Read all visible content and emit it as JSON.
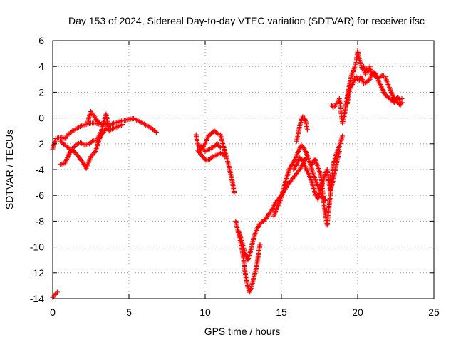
{
  "chart_data": {
    "type": "scatter",
    "title": "Day 153 of 2024, Sidereal Day-to-day VTEC variation (SDTVAR) for receiver ifsc",
    "xlabel": "GPS time / hours",
    "ylabel": "SDTVAR / TECUs",
    "xlim": [
      0,
      25
    ],
    "ylim": [
      -14,
      6
    ],
    "xticks": [
      0,
      5,
      10,
      15,
      20,
      25
    ],
    "yticks": [
      -14,
      -12,
      -10,
      -8,
      -6,
      -4,
      -2,
      0,
      2,
      4,
      6
    ],
    "grid": true,
    "marker": "+",
    "colors": {
      "series": "#ff0000",
      "grid": "#a0a0a0",
      "axis": "#000000"
    },
    "series": [
      {
        "name": "segment-1",
        "points": [
          [
            0.0,
            -2.4
          ],
          [
            0.2,
            -1.6
          ],
          [
            0.5,
            -1.5
          ],
          [
            0.8,
            -1.6
          ],
          [
            1.0,
            -1.3
          ],
          [
            1.3,
            -1.0
          ],
          [
            1.6,
            -0.8
          ],
          [
            1.9,
            -0.6
          ],
          [
            2.2,
            -0.5
          ],
          [
            2.5,
            -0.4
          ],
          [
            2.8,
            -0.4
          ],
          [
            3.1,
            -0.5
          ],
          [
            3.4,
            -0.4
          ],
          [
            3.7,
            -0.6
          ],
          [
            4.0,
            -0.4
          ],
          [
            4.3,
            -0.3
          ],
          [
            4.6,
            -0.2
          ],
          [
            5.0,
            -0.1
          ],
          [
            5.3,
            -0.05
          ],
          [
            5.6,
            -0.2
          ],
          [
            5.9,
            -0.4
          ],
          [
            6.2,
            -0.6
          ],
          [
            6.5,
            -0.8
          ],
          [
            6.8,
            -1.1
          ]
        ]
      },
      {
        "name": "segment-1b",
        "points": [
          [
            0.5,
            -1.8
          ],
          [
            0.8,
            -2.1
          ],
          [
            1.1,
            -2.4
          ],
          [
            1.4,
            -2.6
          ],
          [
            1.7,
            -3.0
          ],
          [
            2.0,
            -3.5
          ],
          [
            2.2,
            -3.9
          ],
          [
            2.5,
            -3.0
          ],
          [
            2.8,
            -2.6
          ],
          [
            3.1,
            -1.5
          ],
          [
            3.5,
            -0.8
          ],
          [
            3.8,
            -0.9
          ],
          [
            4.2,
            -0.7
          ],
          [
            4.6,
            -0.5
          ]
        ]
      },
      {
        "name": "segment-1c",
        "points": [
          [
            0.5,
            -3.6
          ],
          [
            0.8,
            -3.5
          ],
          [
            1.0,
            -3.0
          ],
          [
            1.2,
            -2.5
          ],
          [
            1.5,
            -2.1
          ],
          [
            1.8,
            -1.9
          ],
          [
            2.1,
            -2.1
          ],
          [
            2.4,
            -2.0
          ],
          [
            2.6,
            -1.8
          ],
          [
            2.9,
            -1.7
          ],
          [
            3.2,
            -1.0
          ],
          [
            3.5,
            0.3
          ],
          [
            3.7,
            -1.0
          ]
        ]
      },
      {
        "name": "segment-1d",
        "points": [
          [
            2.3,
            -0.3
          ],
          [
            2.5,
            0.5
          ],
          [
            2.7,
            0.2
          ],
          [
            2.9,
            -0.2
          ],
          [
            3.1,
            -0.4
          ]
        ]
      },
      {
        "name": "segment-0",
        "points": [
          [
            0.0,
            -13.9
          ],
          [
            0.15,
            -13.7
          ],
          [
            0.3,
            -13.5
          ]
        ]
      },
      {
        "name": "segment-2",
        "points": [
          [
            9.4,
            -1.3
          ],
          [
            9.5,
            -2.0
          ],
          [
            9.7,
            -2.5
          ],
          [
            10.0,
            -2.0
          ],
          [
            10.2,
            -1.4
          ],
          [
            10.4,
            -1.2
          ],
          [
            10.6,
            -1.0
          ],
          [
            10.8,
            -1.2
          ],
          [
            11.0,
            -1.3
          ],
          [
            11.2,
            -2.2
          ],
          [
            11.4,
            -3.0
          ],
          [
            11.6,
            -4.0
          ],
          [
            11.8,
            -5.0
          ],
          [
            11.9,
            -5.8
          ]
        ]
      },
      {
        "name": "segment-2b",
        "points": [
          [
            9.5,
            -2.5
          ],
          [
            9.7,
            -2.8
          ],
          [
            9.9,
            -3.1
          ],
          [
            10.1,
            -3.3
          ],
          [
            10.3,
            -3.2
          ],
          [
            10.5,
            -3.0
          ],
          [
            10.7,
            -2.9
          ],
          [
            10.9,
            -2.8
          ],
          [
            11.1,
            -2.7
          ],
          [
            11.3,
            -3.0
          ]
        ]
      },
      {
        "name": "segment-2c",
        "points": [
          [
            9.6,
            -2.1
          ],
          [
            9.8,
            -2.3
          ],
          [
            10.0,
            -2.6
          ],
          [
            10.3,
            -2.4
          ],
          [
            10.6,
            -2.2
          ],
          [
            10.8,
            -2.0
          ],
          [
            11.0,
            -2.3
          ]
        ]
      },
      {
        "name": "segment-3",
        "points": [
          [
            12.0,
            -8.0
          ],
          [
            12.2,
            -9.0
          ],
          [
            12.4,
            -10.0
          ],
          [
            12.5,
            -10.8
          ],
          [
            12.6,
            -11.8
          ],
          [
            12.7,
            -12.6
          ],
          [
            12.8,
            -13.1
          ],
          [
            12.9,
            -13.5
          ],
          [
            13.0,
            -13.2
          ],
          [
            13.1,
            -12.8
          ],
          [
            13.2,
            -12.3
          ],
          [
            13.3,
            -11.9
          ],
          [
            13.4,
            -11.3
          ],
          [
            13.5,
            -10.5
          ],
          [
            13.6,
            -9.8
          ]
        ]
      },
      {
        "name": "segment-3b",
        "points": [
          [
            12.2,
            -8.8
          ],
          [
            12.4,
            -9.5
          ],
          [
            12.6,
            -10.5
          ],
          [
            12.8,
            -11.0
          ],
          [
            13.0,
            -10.2
          ],
          [
            13.2,
            -9.2
          ],
          [
            13.4,
            -8.6
          ],
          [
            13.6,
            -8.2
          ],
          [
            13.8,
            -8.0
          ],
          [
            14.0,
            -7.8
          ],
          [
            14.2,
            -7.4
          ],
          [
            14.4,
            -7.1
          ],
          [
            14.6,
            -6.6
          ],
          [
            14.8,
            -6.3
          ],
          [
            15.0,
            -6.0
          ],
          [
            15.2,
            -5.6
          ],
          [
            15.4,
            -5.2
          ],
          [
            15.6,
            -4.9
          ],
          [
            15.8,
            -4.6
          ],
          [
            16.0,
            -4.3
          ],
          [
            16.2,
            -4.0
          ],
          [
            16.4,
            -3.6
          ],
          [
            16.6,
            -3.1
          ]
        ]
      },
      {
        "name": "segment-3c",
        "points": [
          [
            14.5,
            -7.6
          ],
          [
            14.7,
            -7.0
          ],
          [
            14.9,
            -6.5
          ],
          [
            15.1,
            -5.7
          ],
          [
            15.3,
            -4.8
          ],
          [
            15.5,
            -4.0
          ],
          [
            15.7,
            -3.6
          ],
          [
            15.9,
            -3.2
          ],
          [
            16.1,
            -2.6
          ],
          [
            16.3,
            -2.1
          ],
          [
            16.5,
            -2.4
          ],
          [
            16.7,
            -2.9
          ],
          [
            16.9,
            -3.6
          ],
          [
            17.1,
            -4.4
          ],
          [
            17.3,
            -5.0
          ],
          [
            17.5,
            -5.6
          ],
          [
            17.7,
            -6.2
          ],
          [
            17.9,
            -6.4
          ]
        ]
      },
      {
        "name": "segment-3d",
        "points": [
          [
            15.8,
            -4.0
          ],
          [
            16.0,
            -3.6
          ],
          [
            16.2,
            -3.1
          ],
          [
            16.4,
            -3.3
          ],
          [
            16.6,
            -3.9
          ],
          [
            16.8,
            -4.4
          ],
          [
            17.0,
            -5.0
          ],
          [
            17.2,
            -5.8
          ],
          [
            17.4,
            -6.3
          ],
          [
            17.6,
            -5.4
          ],
          [
            17.8,
            -4.6
          ],
          [
            18.0,
            -4.0
          ],
          [
            18.2,
            -5.6
          ],
          [
            18.4,
            -4.8
          ],
          [
            18.6,
            -3.6
          ],
          [
            18.8,
            -2.6
          ]
        ]
      },
      {
        "name": "segment-3e",
        "points": [
          [
            16.0,
            -1.8
          ],
          [
            16.1,
            -1.2
          ],
          [
            16.2,
            -0.6
          ],
          [
            16.3,
            -0.2
          ],
          [
            16.4,
            0.1
          ],
          [
            16.5,
            0.0
          ],
          [
            16.6,
            -0.3
          ],
          [
            16.7,
            -0.9
          ]
        ]
      },
      {
        "name": "segment-3f",
        "points": [
          [
            17.0,
            -3.6
          ],
          [
            17.2,
            -3.2
          ],
          [
            17.4,
            -3.8
          ],
          [
            17.6,
            -4.5
          ],
          [
            17.8,
            -6.8
          ],
          [
            17.9,
            -7.6
          ],
          [
            18.0,
            -8.3
          ],
          [
            18.2,
            -6.0
          ],
          [
            18.4,
            -3.6
          ],
          [
            18.6,
            -2.8
          ],
          [
            18.8,
            -2.2
          ],
          [
            19.0,
            -1.4
          ]
        ]
      },
      {
        "name": "segment-4",
        "points": [
          [
            18.3,
            1.0
          ],
          [
            18.4,
            0.8
          ],
          [
            18.5,
            0.9
          ],
          [
            18.6,
            1.1
          ],
          [
            18.7,
            1.2
          ],
          [
            18.8,
            1.5
          ],
          [
            18.9,
            0.6
          ],
          [
            19.0,
            -0.4
          ],
          [
            19.1,
            0.0
          ],
          [
            19.2,
            0.8
          ],
          [
            19.3,
            1.5
          ],
          [
            19.4,
            2.2
          ],
          [
            19.5,
            2.8
          ],
          [
            19.6,
            3.3
          ],
          [
            19.7,
            3.6
          ],
          [
            19.8,
            3.9
          ],
          [
            19.9,
            4.3
          ],
          [
            20.0,
            5.2
          ],
          [
            20.1,
            4.6
          ],
          [
            20.2,
            4.2
          ],
          [
            20.3,
            3.8
          ],
          [
            20.4,
            4.0
          ],
          [
            20.5,
            3.4
          ],
          [
            20.6,
            3.8
          ],
          [
            20.7,
            3.6
          ],
          [
            20.8,
            4.0
          ],
          [
            20.9,
            3.5
          ],
          [
            21.0,
            3.3
          ],
          [
            21.2,
            3.2
          ],
          [
            21.4,
            3.1
          ],
          [
            21.6,
            3.3
          ],
          [
            21.8,
            3.2
          ],
          [
            22.0,
            2.6
          ],
          [
            22.2,
            2.0
          ],
          [
            22.4,
            1.5
          ],
          [
            22.6,
            1.2
          ],
          [
            22.8,
            1.0
          ],
          [
            22.9,
            1.2
          ]
        ]
      },
      {
        "name": "segment-4b",
        "points": [
          [
            19.3,
            1.0
          ],
          [
            19.4,
            1.8
          ],
          [
            19.5,
            2.3
          ],
          [
            19.6,
            2.5
          ],
          [
            19.7,
            2.7
          ],
          [
            19.8,
            3.0
          ],
          [
            19.9,
            3.2
          ],
          [
            20.0,
            3.0
          ],
          [
            20.1,
            2.9
          ],
          [
            20.2,
            3.2
          ],
          [
            20.3,
            3.0
          ],
          [
            20.4,
            2.7
          ],
          [
            20.6,
            2.8
          ],
          [
            20.8,
            3.0
          ],
          [
            21.0,
            3.6
          ],
          [
            21.2,
            3.4
          ],
          [
            21.4,
            2.8
          ],
          [
            21.6,
            2.3
          ],
          [
            21.8,
            1.8
          ],
          [
            22.0,
            1.6
          ],
          [
            22.2,
            1.4
          ],
          [
            22.4,
            1.2
          ],
          [
            22.6,
            1.6
          ],
          [
            22.8,
            1.4
          ],
          [
            22.9,
            1.5
          ]
        ]
      }
    ]
  }
}
